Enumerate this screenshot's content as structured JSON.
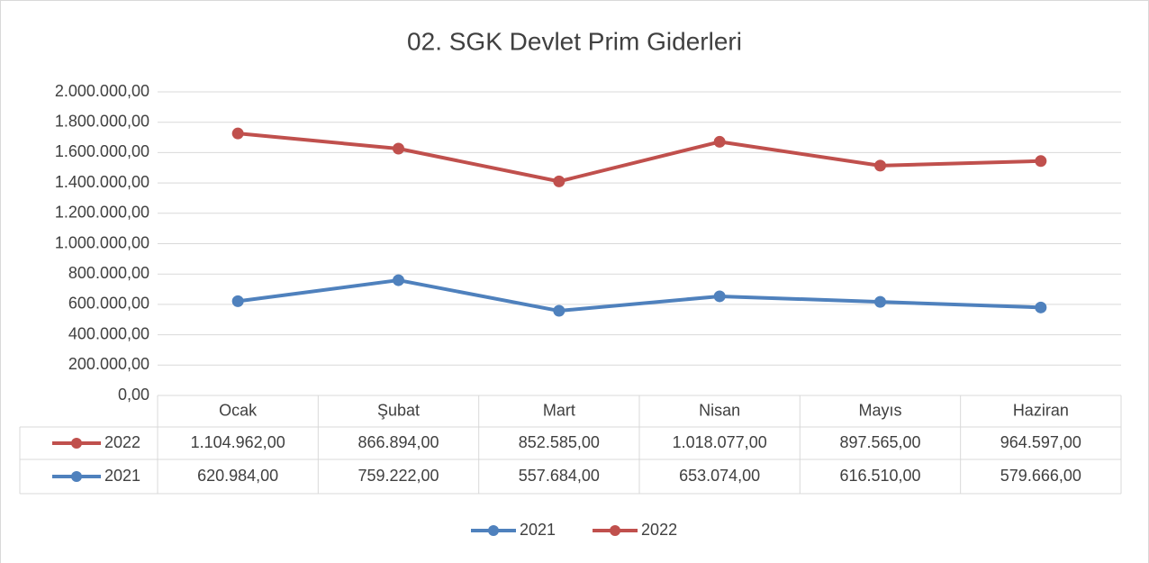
{
  "chart_data": {
    "type": "line",
    "stacked": true,
    "title": "02. SGK Devlet Prim Giderleri",
    "categories": [
      "Ocak",
      "Şubat",
      "Mart",
      "Nisan",
      "Mayıs",
      "Haziran"
    ],
    "series": [
      {
        "name": "2021",
        "color": "#4f81bd",
        "values": [
          620984,
          759222,
          557684,
          653074,
          616510,
          579666
        ],
        "value_labels": [
          "620.984,00",
          "759.222,00",
          "557.684,00",
          "653.074,00",
          "616.510,00",
          "579.666,00"
        ]
      },
      {
        "name": "2022",
        "color": "#c0504d",
        "values": [
          1104962,
          866894,
          852585,
          1018077,
          897565,
          964597
        ],
        "value_labels": [
          "1.104.962,00",
          "866.894,00",
          "852.585,00",
          "1.018.077,00",
          "897.565,00",
          "964.597,00"
        ]
      }
    ],
    "ylim": [
      0,
      2000000
    ],
    "yticks": [
      {
        "value": 0,
        "label": "0,00"
      },
      {
        "value": 200000,
        "label": "200.000,00"
      },
      {
        "value": 400000,
        "label": "400.000,00"
      },
      {
        "value": 600000,
        "label": "600.000,00"
      },
      {
        "value": 800000,
        "label": "800.000,00"
      },
      {
        "value": 1000000,
        "label": "1.000.000,00"
      },
      {
        "value": 1200000,
        "label": "1.200.000,00"
      },
      {
        "value": 1400000,
        "label": "1.400.000,00"
      },
      {
        "value": 1600000,
        "label": "1.600.000,00"
      },
      {
        "value": 1800000,
        "label": "1.800.000,00"
      },
      {
        "value": 2000000,
        "label": "2.000.000,00"
      }
    ],
    "grid": true,
    "data_table": true,
    "legend": "bottom"
  }
}
